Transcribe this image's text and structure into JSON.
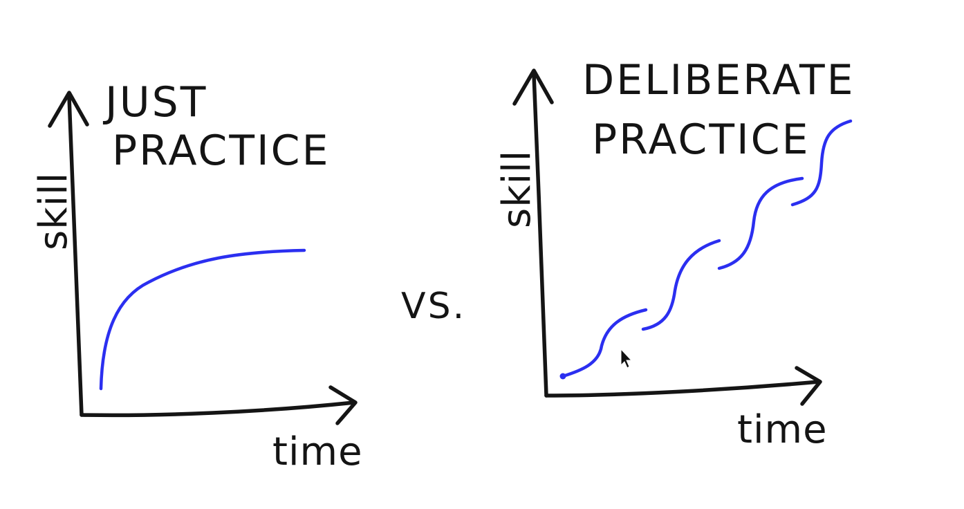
{
  "left_panel": {
    "title_line1": "JUST",
    "title_line2": "PRACTICE",
    "y_label": "skill",
    "x_label": "time"
  },
  "center": {
    "versus": "VS."
  },
  "right_panel": {
    "title_line1": "DELIBERATE",
    "title_line2": "PRACTICE",
    "y_label": "skill",
    "x_label": "time"
  },
  "colors": {
    "ink": "#151515",
    "curve": "#2b2ff0",
    "background": "#ffffff"
  },
  "icons": {
    "cursor": "mouse-pointer-icon"
  }
}
